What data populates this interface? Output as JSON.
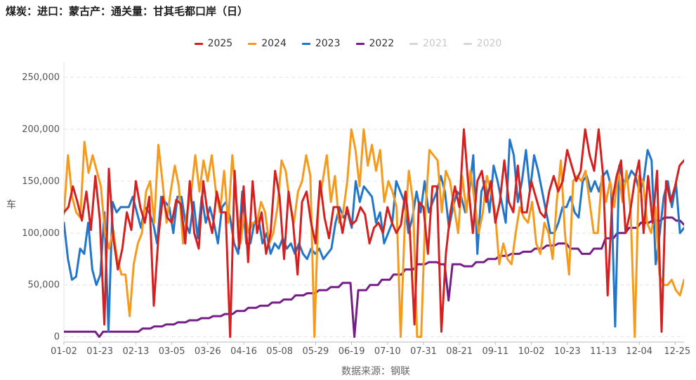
{
  "title": "煤炭：进口：蒙古产：通关量：甘其毛都口岸（日）",
  "source": "数据来源：钢联",
  "chart_data": {
    "type": "line",
    "ylabel": "车",
    "ylim": [
      -5000,
      265000
    ],
    "yticks": [
      0,
      50000,
      100000,
      150000,
      200000,
      250000
    ],
    "ytick_labels": [
      "0",
      "50,000",
      "100,000",
      "150,000",
      "200,000",
      "250,000"
    ],
    "x_tick_labels": [
      "01-02",
      "01-23",
      "02-13",
      "03-05",
      "03-26",
      "04-16",
      "05-08",
      "05-29",
      "06-19",
      "07-10",
      "07-31",
      "08-21",
      "09-11",
      "10-02",
      "10-23",
      "11-13",
      "12-04",
      "12-25"
    ],
    "grid": true,
    "legend_position": "top",
    "series": [
      {
        "name": "2025",
        "color": "#d42020",
        "visible": true,
        "values": [
          120000,
          125000,
          145000,
          130000,
          112000,
          140000,
          103000,
          155000,
          113000,
          12000,
          162000,
          95000,
          65000,
          85000,
          120000,
          103000,
          150000,
          125000,
          110000,
          135000,
          30000,
          95000,
          135000,
          115000,
          110000,
          132000,
          128000,
          90000,
          150000,
          100000,
          85000,
          150000,
          118000,
          100000,
          140000,
          120000,
          120000,
          0,
          160000,
          85000,
          145000,
          72000,
          150000,
          100000,
          120000,
          80000,
          100000,
          160000,
          135000,
          75000,
          140000,
          110000,
          60000,
          130000,
          140000,
          110000,
          90000,
          150000,
          115000,
          95000,
          125000,
          125000,
          100000,
          125000,
          108000,
          112000,
          125000,
          118000,
          90000,
          105000,
          110000,
          100000,
          125000,
          110000,
          100000,
          108000,
          140000,
          100000,
          12000,
          130000,
          125000,
          80000,
          145000,
          145000,
          5000,
          80000,
          120000,
          145000,
          125000,
          200000,
          145000,
          100000,
          150000,
          160000,
          130000,
          150000,
          110000,
          130000,
          170000,
          130000,
          120000,
          165000,
          120000,
          120000,
          150000,
          135000,
          120000,
          115000,
          140000,
          155000,
          140000,
          150000,
          180000,
          165000,
          150000,
          160000,
          200000,
          175000,
          160000,
          200000,
          155000,
          40000,
          130000,
          155000,
          170000,
          100000,
          120000,
          150000,
          170000,
          100000,
          155000,
          110000,
          160000,
          5000,
          150000,
          130000,
          145000,
          165000,
          170000
        ]
      },
      {
        "name": "2024",
        "color": "#f59a1c",
        "visible": true,
        "values": [
          118000,
          175000,
          135000,
          120000,
          115000,
          188000,
          158000,
          175000,
          160000,
          145000,
          100000,
          85000,
          103000,
          75000,
          60000,
          60000,
          20000,
          70000,
          90000,
          100000,
          140000,
          150000,
          110000,
          185000,
          150000,
          110000,
          140000,
          165000,
          145000,
          90000,
          120000,
          140000,
          175000,
          140000,
          170000,
          150000,
          175000,
          140000,
          120000,
          160000,
          110000,
          175000,
          130000,
          90000,
          120000,
          100000,
          110000,
          110000,
          130000,
          120000,
          90000,
          100000,
          125000,
          170000,
          160000,
          130000,
          110000,
          140000,
          150000,
          175000,
          155000,
          0,
          130000,
          150000,
          175000,
          130000,
          155000,
          110000,
          120000,
          150000,
          200000,
          180000,
          145000,
          200000,
          165000,
          185000,
          160000,
          180000,
          130000,
          150000,
          140000,
          125000,
          0,
          110000,
          160000,
          130000,
          0,
          0,
          120000,
          180000,
          175000,
          170000,
          120000,
          160000,
          150000,
          125000,
          100000,
          155000,
          120000,
          160000,
          130000,
          100000,
          120000,
          155000,
          140000,
          120000,
          70000,
          90000,
          75000,
          70000,
          100000,
          125000,
          115000,
          110000,
          130000,
          90000,
          80000,
          110000,
          100000,
          75000,
          130000,
          170000,
          100000,
          60000,
          150000,
          155000,
          150000,
          160000,
          130000,
          100000,
          100000,
          155000,
          130000,
          150000,
          125000,
          160000,
          130000,
          160000,
          120000,
          0,
          155000,
          150000,
          110000,
          100000,
          125000,
          60000,
          50000,
          50000,
          55000,
          45000,
          40000,
          55000
        ]
      },
      {
        "name": "2023",
        "color": "#2276c9",
        "visible": true,
        "values": [
          110000,
          75000,
          55000,
          58000,
          85000,
          80000,
          110000,
          65000,
          50000,
          60000,
          120000,
          5000,
          130000,
          120000,
          125000,
          125000,
          125000,
          135000,
          120000,
          105000,
          125000,
          120000,
          110000,
          90000,
          135000,
          130000,
          125000,
          100000,
          135000,
          135000,
          110000,
          100000,
          130000,
          95000,
          135000,
          110000,
          125000,
          110000,
          90000,
          125000,
          130000,
          115000,
          90000,
          80000,
          140000,
          90000,
          90000,
          110000,
          115000,
          90000,
          100000,
          80000,
          90000,
          85000,
          95000,
          85000,
          90000,
          80000,
          90000,
          80000,
          75000,
          85000,
          80000,
          85000,
          75000,
          80000,
          85000,
          110000,
          125000,
          115000,
          120000,
          105000,
          150000,
          130000,
          145000,
          140000,
          135000,
          110000,
          120000,
          90000,
          100000,
          110000,
          150000,
          140000,
          130000,
          100000,
          115000,
          140000,
          120000,
          150000,
          120000,
          130000,
          140000,
          155000,
          140000,
          105000,
          125000,
          140000,
          135000,
          120000,
          140000,
          175000,
          80000,
          140000,
          150000,
          120000,
          165000,
          150000,
          130000,
          110000,
          190000,
          175000,
          130000,
          150000,
          180000,
          140000,
          175000,
          160000,
          140000,
          120000,
          100000,
          100000,
          110000,
          125000,
          125000,
          135000,
          120000,
          115000,
          150000,
          155000,
          140000,
          150000,
          140000,
          155000,
          160000,
          145000,
          10000,
          165000,
          150000,
          150000,
          160000,
          155000,
          140000,
          150000,
          180000,
          170000,
          70000,
          100000,
          135000,
          150000,
          125000,
          148000,
          100000,
          105000
        ]
      },
      {
        "name": "2022",
        "color": "#761e87",
        "visible": true,
        "values": [
          5000,
          5000,
          5000,
          5000,
          5000,
          5000,
          5000,
          5000,
          5000,
          0,
          5000,
          5000,
          5000,
          5000,
          5000,
          5000,
          5000,
          5000,
          5000,
          5000,
          8000,
          8000,
          8000,
          10000,
          10000,
          10000,
          12000,
          12000,
          12000,
          14000,
          14000,
          14000,
          16000,
          16000,
          16000,
          18000,
          18000,
          18000,
          20000,
          20000,
          20000,
          22000,
          22000,
          22000,
          25000,
          25000,
          25000,
          28000,
          28000,
          28000,
          30000,
          30000,
          30000,
          33000,
          33000,
          33000,
          36000,
          36000,
          36000,
          40000,
          40000,
          40000,
          42000,
          42000,
          42000,
          45000,
          45000,
          45000,
          48000,
          48000,
          48000,
          52000,
          52000,
          52000,
          0,
          45000,
          45000,
          45000,
          50000,
          50000,
          50000,
          55000,
          55000,
          55000,
          60000,
          60000,
          60000,
          65000,
          65000,
          65000,
          70000,
          70000,
          70000,
          72000,
          72000,
          72000,
          70000,
          70000,
          35000,
          70000,
          70000,
          70000,
          68000,
          68000,
          68000,
          72000,
          72000,
          72000,
          75000,
          75000,
          75000,
          78000,
          78000,
          78000,
          80000,
          80000,
          80000,
          82000,
          82000,
          82000,
          85000,
          85000,
          85000,
          88000,
          88000,
          88000,
          90000,
          90000,
          90000,
          85000,
          85000,
          85000,
          80000,
          80000,
          80000,
          85000,
          85000,
          85000,
          95000,
          95000,
          95000,
          100000,
          100000,
          100000,
          105000,
          105000,
          105000,
          110000,
          110000,
          110000,
          112000,
          112000,
          112000,
          115000,
          115000,
          115000,
          112000,
          112000,
          108000
        ]
      },
      {
        "name": "2021",
        "color": "#c9c9c9",
        "visible": false,
        "values": []
      },
      {
        "name": "2020",
        "color": "#c9c9c9",
        "visible": false,
        "values": []
      }
    ]
  }
}
